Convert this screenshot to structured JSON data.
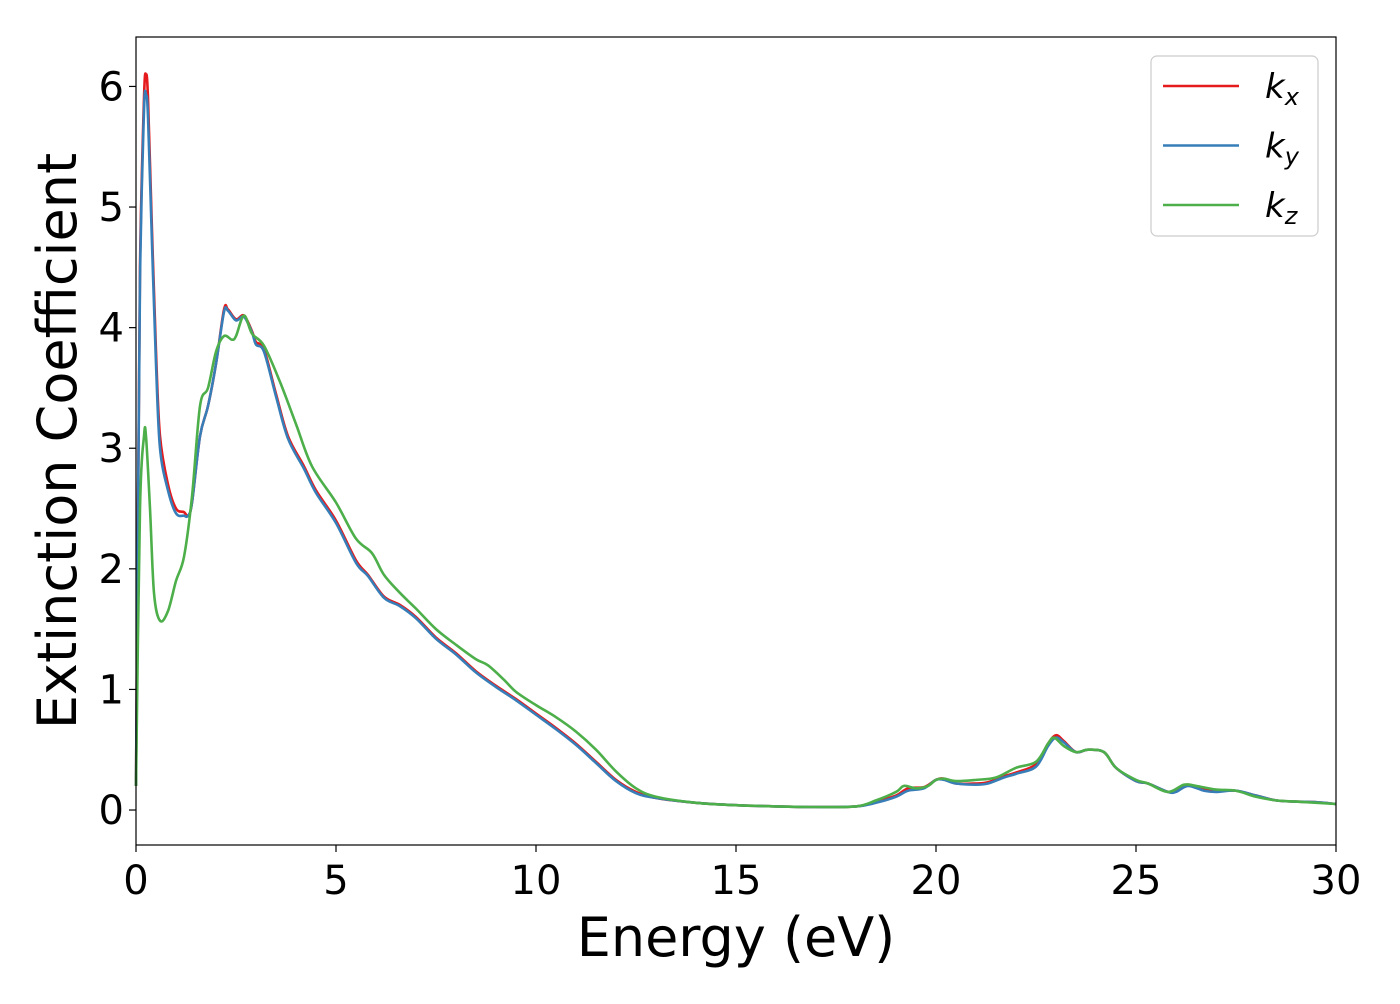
{
  "chart_data": {
    "type": "line",
    "title": "",
    "xlabel": "Energy (eV)",
    "ylabel": "Extinction Coefficient",
    "xlim": [
      0,
      30
    ],
    "ylim": [
      -0.29,
      6.41
    ],
    "xticks": [
      0,
      5,
      10,
      15,
      20,
      25,
      30
    ],
    "yticks": [
      0,
      1,
      2,
      3,
      4,
      5,
      6
    ],
    "grid": false,
    "legend_position": "top-right",
    "series": [
      {
        "name": "k",
        "subscript": "x",
        "color": "#e41a1c",
        "x": [
          0,
          0.05,
          0.1,
          0.2,
          0.25,
          0.3,
          0.4,
          0.5,
          0.6,
          0.8,
          1.0,
          1.2,
          1.3,
          1.4,
          1.6,
          1.8,
          2.0,
          2.2,
          2.3,
          2.5,
          2.7,
          2.9,
          3.0,
          3.2,
          3.5,
          3.8,
          4.2,
          4.5,
          5,
          5.5,
          5.8,
          6.2,
          6.6,
          7,
          7.5,
          8,
          8.5,
          9,
          9.5,
          10,
          10.5,
          11,
          11.5,
          12,
          12.5,
          13,
          14,
          15,
          16,
          17,
          18,
          18.5,
          19,
          19.3,
          19.7,
          20,
          20.2,
          20.5,
          21,
          21.3,
          21.7,
          22,
          22.5,
          22.8,
          23,
          23.2,
          23.5,
          23.8,
          24.2,
          24.5,
          25,
          25.3,
          25.8,
          26,
          26.3,
          26.7,
          27,
          27.5,
          28,
          28.5,
          29,
          29.5,
          30
        ],
        "y": [
          0.2,
          2.5,
          4.5,
          5.9,
          6.1,
          5.9,
          4.8,
          3.8,
          3.1,
          2.7,
          2.5,
          2.47,
          2.44,
          2.55,
          3.1,
          3.35,
          3.7,
          4.15,
          4.15,
          4.07,
          4.1,
          3.97,
          3.88,
          3.82,
          3.45,
          3.1,
          2.85,
          2.65,
          2.4,
          2.07,
          1.95,
          1.77,
          1.7,
          1.6,
          1.43,
          1.3,
          1.15,
          1.03,
          0.92,
          0.8,
          0.68,
          0.55,
          0.4,
          0.25,
          0.15,
          0.1,
          0.06,
          0.04,
          0.03,
          0.025,
          0.03,
          0.07,
          0.12,
          0.18,
          0.19,
          0.25,
          0.26,
          0.22,
          0.22,
          0.23,
          0.28,
          0.31,
          0.38,
          0.55,
          0.62,
          0.57,
          0.48,
          0.5,
          0.48,
          0.35,
          0.24,
          0.22,
          0.15,
          0.16,
          0.21,
          0.17,
          0.16,
          0.16,
          0.12,
          0.08,
          0.07,
          0.065,
          0.05
        ]
      },
      {
        "name": "k",
        "subscript": "y",
        "color": "#377eb8",
        "x": [
          0,
          0.05,
          0.1,
          0.2,
          0.25,
          0.3,
          0.4,
          0.5,
          0.6,
          0.8,
          1.0,
          1.2,
          1.3,
          1.4,
          1.6,
          1.8,
          2.0,
          2.2,
          2.3,
          2.5,
          2.7,
          2.9,
          3.0,
          3.2,
          3.5,
          3.8,
          4.2,
          4.5,
          5,
          5.5,
          5.8,
          6.2,
          6.6,
          7,
          7.5,
          8,
          8.5,
          9,
          9.5,
          10,
          10.5,
          11,
          11.5,
          12,
          12.5,
          13,
          14,
          15,
          16,
          17,
          18,
          18.5,
          19,
          19.3,
          19.7,
          20,
          20.2,
          20.5,
          21,
          21.3,
          21.7,
          22,
          22.5,
          22.8,
          23,
          23.2,
          23.5,
          23.8,
          24.2,
          24.5,
          25,
          25.3,
          25.8,
          26,
          26.3,
          26.7,
          27,
          27.5,
          28,
          28.5,
          29,
          29.5,
          30
        ],
        "y": [
          0.2,
          2.4,
          4.4,
          5.8,
          5.93,
          5.75,
          4.7,
          3.7,
          3.0,
          2.65,
          2.46,
          2.44,
          2.44,
          2.55,
          3.1,
          3.35,
          3.7,
          4.13,
          4.14,
          4.06,
          4.09,
          3.96,
          3.86,
          3.8,
          3.43,
          3.08,
          2.83,
          2.63,
          2.38,
          2.05,
          1.94,
          1.76,
          1.69,
          1.59,
          1.42,
          1.29,
          1.14,
          1.02,
          0.91,
          0.79,
          0.67,
          0.54,
          0.39,
          0.24,
          0.14,
          0.1,
          0.06,
          0.04,
          0.03,
          0.025,
          0.03,
          0.06,
          0.11,
          0.16,
          0.18,
          0.25,
          0.25,
          0.22,
          0.21,
          0.22,
          0.27,
          0.3,
          0.36,
          0.53,
          0.6,
          0.56,
          0.48,
          0.5,
          0.48,
          0.35,
          0.24,
          0.22,
          0.15,
          0.15,
          0.2,
          0.16,
          0.15,
          0.16,
          0.12,
          0.08,
          0.07,
          0.065,
          0.05
        ]
      },
      {
        "name": "k",
        "subscript": "z",
        "color": "#4daf4a",
        "x": [
          0,
          0.1,
          0.2,
          0.25,
          0.35,
          0.45,
          0.6,
          0.8,
          1.0,
          1.2,
          1.4,
          1.6,
          1.8,
          2.0,
          2.2,
          2.4,
          2.5,
          2.7,
          2.9,
          3.2,
          3.6,
          4.0,
          4.4,
          5,
          5.5,
          5.9,
          6.2,
          6.6,
          7,
          7.5,
          8,
          8.5,
          8.8,
          9.2,
          9.5,
          10,
          10.5,
          11,
          11.5,
          12,
          12.5,
          13,
          14,
          15,
          16,
          17,
          18,
          18.5,
          19,
          19.2,
          19.5,
          19.8,
          20,
          20.2,
          20.5,
          21,
          21.5,
          22,
          22.5,
          22.8,
          22.95,
          23.2,
          23.5,
          23.8,
          24.2,
          24.5,
          25,
          25.3,
          25.8,
          26.2,
          26.5,
          27,
          27.5,
          28,
          28.5,
          29,
          30
        ],
        "y": [
          0.2,
          2.5,
          3.1,
          3.1,
          2.5,
          1.8,
          1.57,
          1.65,
          1.9,
          2.1,
          2.6,
          3.35,
          3.5,
          3.8,
          3.93,
          3.9,
          3.93,
          4.1,
          3.95,
          3.85,
          3.55,
          3.2,
          2.85,
          2.55,
          2.25,
          2.13,
          1.95,
          1.8,
          1.67,
          1.5,
          1.37,
          1.25,
          1.2,
          1.08,
          0.98,
          0.87,
          0.77,
          0.65,
          0.5,
          0.32,
          0.18,
          0.11,
          0.06,
          0.04,
          0.03,
          0.025,
          0.03,
          0.08,
          0.15,
          0.2,
          0.18,
          0.2,
          0.25,
          0.26,
          0.24,
          0.25,
          0.27,
          0.35,
          0.4,
          0.55,
          0.6,
          0.53,
          0.48,
          0.5,
          0.48,
          0.35,
          0.25,
          0.22,
          0.15,
          0.21,
          0.2,
          0.17,
          0.16,
          0.11,
          0.08,
          0.07,
          0.05
        ]
      }
    ]
  }
}
